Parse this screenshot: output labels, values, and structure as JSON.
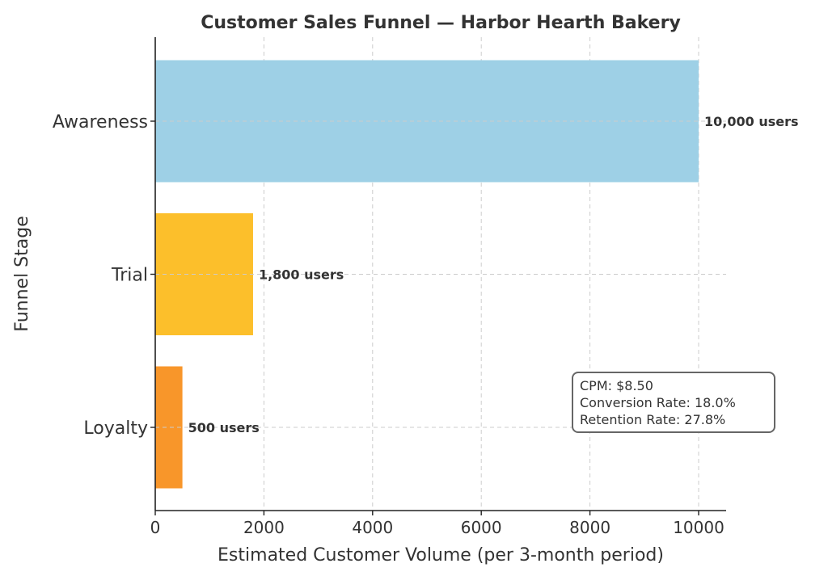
{
  "chart_data": {
    "type": "bar",
    "orientation": "horizontal",
    "title": "Customer Sales Funnel — Harbor Hearth Bakery",
    "xlabel": "Estimated Customer Volume (per 3-month period)",
    "ylabel": "Funnel Stage",
    "categories": [
      "Awareness",
      "Trial",
      "Loyalty"
    ],
    "values": [
      10000,
      1800,
      500
    ],
    "data_labels": [
      "10,000 users",
      "1,800 users",
      "500 users"
    ],
    "colors": [
      "#9ed0e6",
      "#fcbf2b",
      "#f8962a"
    ],
    "xlim": [
      0,
      10500
    ],
    "xticks": [
      0,
      2000,
      4000,
      6000,
      8000,
      10000
    ],
    "xtick_labels": [
      "0",
      "2000",
      "4000",
      "6000",
      "8000",
      "10000"
    ],
    "grid": true,
    "annotation": {
      "lines": [
        "CPM: $8.50",
        "Conversion Rate: 18.0%",
        "Retention Rate: 27.8%"
      ],
      "placement": "lower-right"
    }
  }
}
